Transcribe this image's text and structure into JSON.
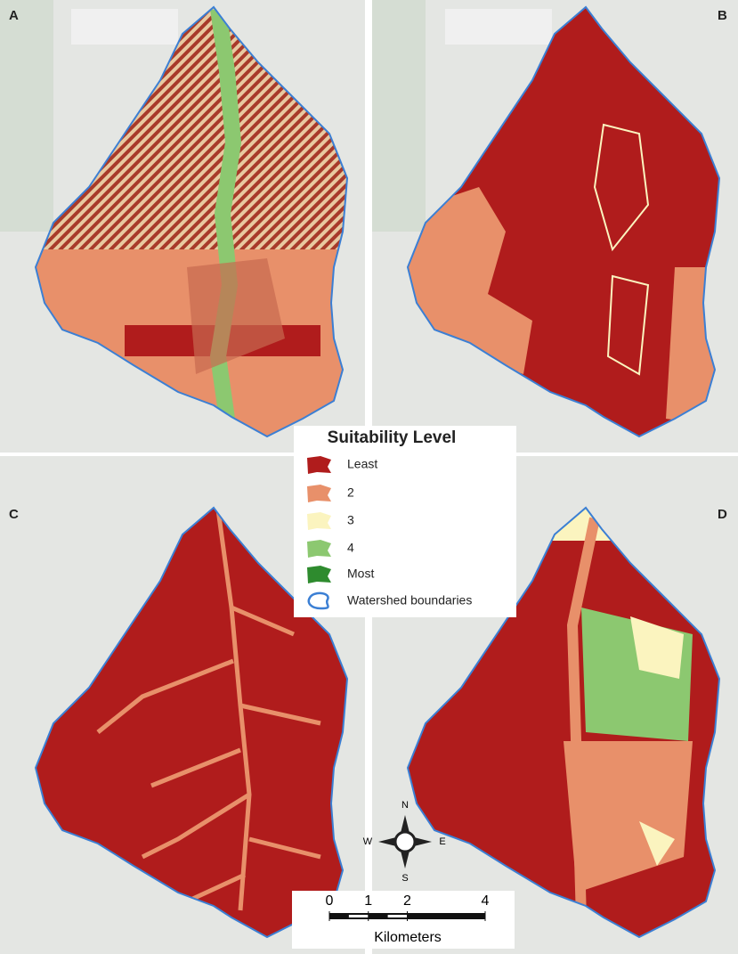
{
  "panels": [
    {
      "label": "A"
    },
    {
      "label": "B"
    },
    {
      "label": "C"
    },
    {
      "label": "D"
    }
  ],
  "legend": {
    "title": "Suitability Level",
    "items": [
      {
        "label": "Least",
        "color": "#b01c1c"
      },
      {
        "label": "2",
        "color": "#e8906a"
      },
      {
        "label": "3",
        "color": "#fbf4bf"
      },
      {
        "label": "4",
        "color": "#8cc870"
      },
      {
        "label": "Most",
        "color": "#2e8b2e"
      },
      {
        "label": "Watershed boundaries",
        "color": "#3b7fd4"
      }
    ]
  },
  "compass": {
    "north": "N",
    "south": "S",
    "east": "E",
    "west": "W"
  },
  "scale_bar": {
    "ticks": [
      0,
      1,
      2,
      4
    ],
    "unit": "Kilometers"
  }
}
